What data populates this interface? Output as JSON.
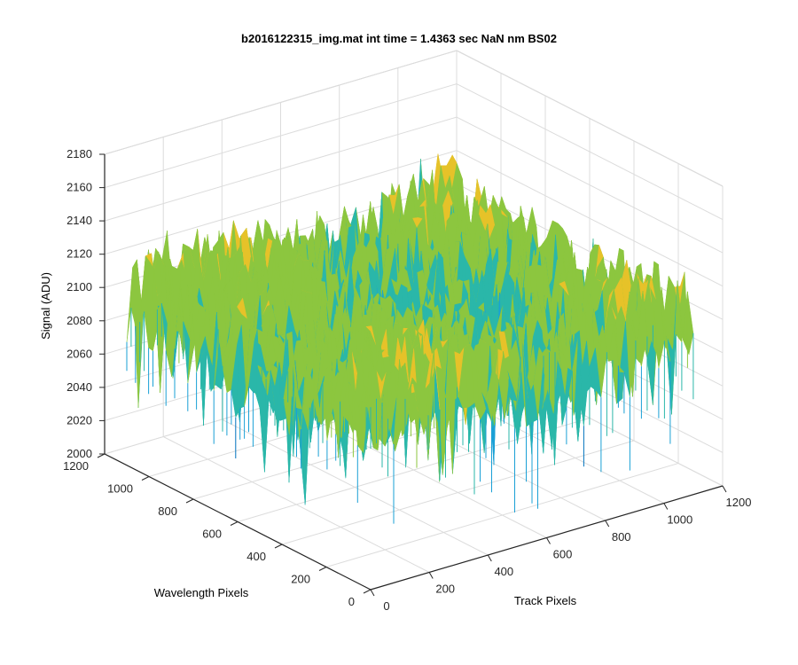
{
  "chart_data": {
    "type": "surface",
    "title": "b2016122315_img.mat int time = 1.4363 sec  NaN nm BS02",
    "xlabel": "Track Pixels",
    "ylabel": "Wavelength Pixels",
    "zlabel": "Signal (ADU)",
    "xlim": [
      0,
      1200
    ],
    "ylim": [
      0,
      1200
    ],
    "zlim": [
      2000,
      2180
    ],
    "xticks": [
      "0",
      "200",
      "400",
      "600",
      "800",
      "1000",
      "1200"
    ],
    "yticks": [
      "0",
      "200",
      "400",
      "600",
      "800",
      "1000",
      "1200"
    ],
    "zticks": [
      "2000",
      "2020",
      "2040",
      "2060",
      "2080",
      "2100",
      "2120",
      "2140",
      "2160",
      "2180"
    ],
    "grid": true,
    "colormap": "parula",
    "colors": [
      "#0072bd",
      "#1aa0d6",
      "#2ab7a9",
      "#8cc63f",
      "#e6c229",
      "#f2b134"
    ],
    "surface": {
      "x_extent": [
        0,
        1100
      ],
      "y_extent": [
        0,
        1100
      ],
      "mean_signal": 2095,
      "min_signal_approx": 2020,
      "max_signal_approx": 2160
    }
  }
}
